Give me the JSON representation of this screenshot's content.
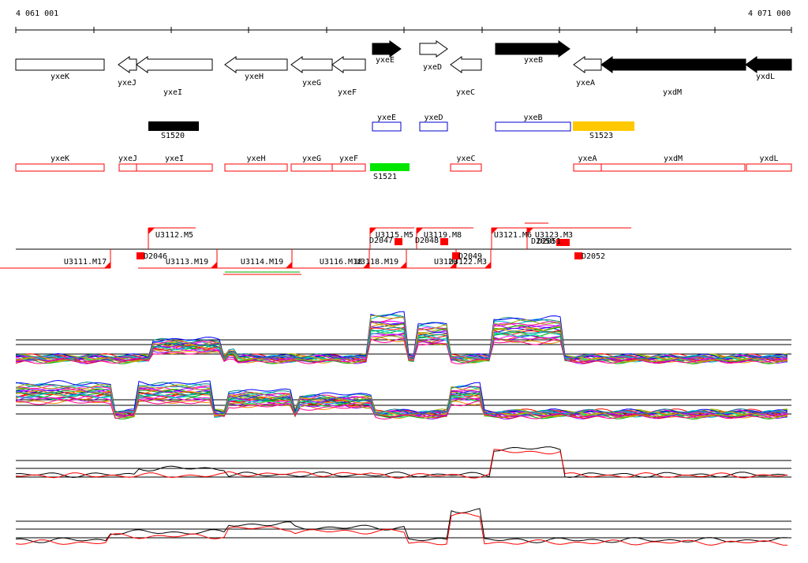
{
  "coords": {
    "start": "4 061 001",
    "end": "4 071 000"
  },
  "genes": [
    {
      "name": "yxeK",
      "strand": "+",
      "fill": "white"
    },
    {
      "name": "yxeJ",
      "strand": "-",
      "fill": "white"
    },
    {
      "name": "yxeI",
      "strand": "-",
      "fill": "white"
    },
    {
      "name": "yxeH",
      "strand": "-",
      "fill": "white"
    },
    {
      "name": "yxeG",
      "strand": "-",
      "fill": "white"
    },
    {
      "name": "yxeF",
      "strand": "-",
      "fill": "white"
    },
    {
      "name": "yxeE",
      "strand": "+",
      "fill": "black"
    },
    {
      "name": "yxeD",
      "strand": "+",
      "fill": "white"
    },
    {
      "name": "yxeC",
      "strand": "-",
      "fill": "white"
    },
    {
      "name": "yxeB",
      "strand": "+",
      "fill": "black"
    },
    {
      "name": "yxeA",
      "strand": "-",
      "fill": "white"
    },
    {
      "name": "yxdM",
      "strand": "-",
      "fill": "black"
    },
    {
      "name": "yxdL",
      "strand": "-",
      "fill": "black"
    }
  ],
  "blue_boxes": [
    "yxeE",
    "yxeD",
    "yxeB"
  ],
  "features": [
    {
      "name": "S1520",
      "color": "#000000"
    },
    {
      "name": "S1523",
      "color": "#ffc800"
    },
    {
      "name": "S1521",
      "color": "#00e600"
    }
  ],
  "red_boxes": [
    "yxeK",
    "yxeJ",
    "yxeI",
    "yxeH",
    "yxeG",
    "yxeF",
    "yxeC",
    "yxeA",
    "yxdM",
    "yxdL"
  ],
  "upper_segments": [
    "U3112.M5",
    "U3115.M5",
    "U3119.M8",
    "U3121.M6",
    "U3123.M3"
  ],
  "lower_segments": [
    "U3111.M17",
    "U3113.M19",
    "U3114.M19",
    "U3116.M18",
    "U3118.M19",
    "U3120",
    "U3122.M3"
  ],
  "downshifts": [
    "D2046",
    "D2047",
    "D2048",
    "D2049",
    "D2050",
    "D2051",
    "D2052"
  ],
  "colors": {
    "red": "#ff0000",
    "blue": "#0000cc",
    "black": "#000000"
  },
  "tracks": [
    "upper-strand-profiles",
    "lower-strand-profiles",
    "upper-strand-summary",
    "lower-strand-summary"
  ]
}
